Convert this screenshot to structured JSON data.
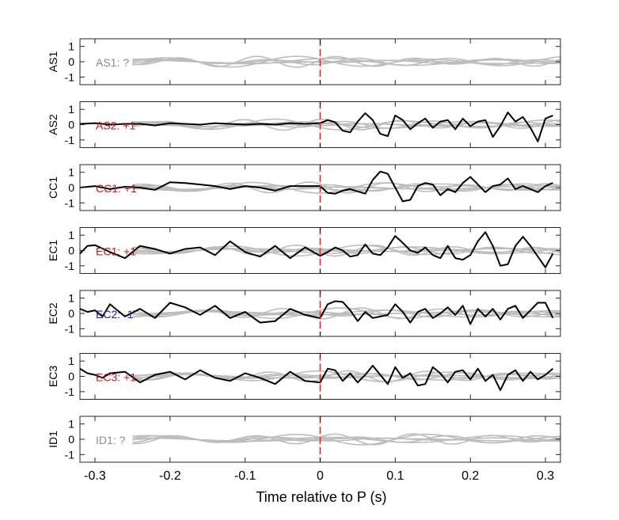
{
  "chart_data": {
    "type": "line",
    "xlabel": "Time relative to P (s)",
    "xlim": [
      -0.32,
      0.32
    ],
    "xticks": [
      -0.3,
      -0.2,
      -0.1,
      0,
      0.1,
      0.2,
      0.3
    ],
    "xtick_labels": [
      "-0.3",
      "-0.2",
      "-0.1",
      "0",
      "0.1",
      "0.2",
      "0.3"
    ],
    "ylim": [
      -1.5,
      1.5
    ],
    "yticks": [
      1,
      0,
      -1
    ],
    "ytick_labels": [
      "1",
      "0",
      "-1"
    ],
    "pick_marker_x": 0,
    "colors": {
      "axis": "#262626",
      "trace": "#000000",
      "background_traces": "#bdbdbd",
      "pick_marker": "#e8261f",
      "label_positive": "#c0151a",
      "label_negative": "#1b1bb0",
      "label_unknown": "#8c8c8c"
    },
    "panels": [
      {
        "ylabel": "AS1",
        "annotation": "AS1: ?",
        "annotation_color": "#8c8c8c",
        "trace": null
      },
      {
        "ylabel": "AS2",
        "annotation": "AS2: +1",
        "annotation_color": "#c0151a",
        "trace": {
          "x": [
            -0.32,
            -0.3,
            -0.28,
            -0.26,
            -0.24,
            -0.22,
            -0.2,
            -0.18,
            -0.16,
            -0.14,
            -0.12,
            -0.1,
            -0.08,
            -0.06,
            -0.04,
            -0.02,
            0,
            0.01,
            0.02,
            0.03,
            0.04,
            0.05,
            0.06,
            0.07,
            0.08,
            0.09,
            0.1,
            0.11,
            0.12,
            0.13,
            0.14,
            0.15,
            0.16,
            0.17,
            0.18,
            0.19,
            0.2,
            0.21,
            0.22,
            0.23,
            0.24,
            0.25,
            0.26,
            0.27,
            0.28,
            0.29,
            0.3,
            0.31
          ],
          "y": [
            0.05,
            0.1,
            0,
            0.05,
            0.05,
            -0.05,
            0.1,
            0.05,
            0,
            0.1,
            0.05,
            0,
            0.05,
            0,
            0.1,
            0.05,
            0.1,
            0.3,
            0.15,
            -0.4,
            -0.5,
            0.2,
            0.75,
            0.3,
            -0.6,
            -0.75,
            0.6,
            0.3,
            -0.3,
            0.1,
            0.4,
            -0.2,
            0.2,
            0.3,
            -0.3,
            0.4,
            -0.1,
            0.2,
            0.3,
            -0.8,
            -0.1,
            0.8,
            0.2,
            0.5,
            -0.2,
            -1.1,
            0.4,
            0.6
          ]
        }
      },
      {
        "ylabel": "CC1",
        "annotation": "CC1: +1",
        "annotation_color": "#c0151a",
        "trace": {
          "x": [
            -0.32,
            -0.3,
            -0.28,
            -0.26,
            -0.24,
            -0.22,
            -0.2,
            -0.18,
            -0.16,
            -0.14,
            -0.12,
            -0.1,
            -0.08,
            -0.06,
            -0.04,
            -0.02,
            0,
            0.01,
            0.02,
            0.03,
            0.04,
            0.05,
            0.06,
            0.07,
            0.08,
            0.09,
            0.1,
            0.11,
            0.12,
            0.13,
            0.14,
            0.15,
            0.16,
            0.17,
            0.18,
            0.19,
            0.2,
            0.21,
            0.22,
            0.23,
            0.24,
            0.25,
            0.26,
            0.27,
            0.28,
            0.29,
            0.3,
            0.31
          ],
          "y": [
            0,
            0.1,
            -0.1,
            0.05,
            0,
            -0.15,
            0.35,
            0.3,
            0.2,
            0.1,
            -0.1,
            0.1,
            0,
            -0.2,
            0.1,
            0.1,
            0.1,
            -0.35,
            -0.4,
            -0.2,
            -0.1,
            -0.25,
            -0.4,
            0.5,
            1.05,
            0.9,
            0,
            -0.9,
            -0.8,
            0.1,
            0.3,
            0.2,
            -0.5,
            -0.1,
            -0.3,
            0.3,
            0.7,
            0.2,
            -0.3,
            0.1,
            0.2,
            0.6,
            -0.1,
            0.1,
            -0.1,
            -0.3,
            0.1,
            0.3
          ]
        }
      },
      {
        "ylabel": "EC1",
        "annotation": "EC1: +1",
        "annotation_color": "#c0151a",
        "trace": {
          "x": [
            -0.32,
            -0.31,
            -0.3,
            -0.28,
            -0.26,
            -0.24,
            -0.22,
            -0.2,
            -0.18,
            -0.16,
            -0.14,
            -0.12,
            -0.1,
            -0.08,
            -0.06,
            -0.04,
            -0.02,
            0,
            0.01,
            0.02,
            0.03,
            0.04,
            0.05,
            0.06,
            0.07,
            0.08,
            0.09,
            0.1,
            0.11,
            0.12,
            0.13,
            0.14,
            0.15,
            0.16,
            0.17,
            0.18,
            0.19,
            0.2,
            0.21,
            0.22,
            0.23,
            0.24,
            0.25,
            0.26,
            0.27,
            0.28,
            0.29,
            0.3,
            0.31
          ],
          "y": [
            -0.2,
            0.3,
            0.35,
            -0.1,
            -0.5,
            0.3,
            0.1,
            -0.2,
            0.1,
            0.2,
            -0.3,
            0.6,
            -0.1,
            -0.4,
            0.3,
            -0.5,
            0.2,
            -0.35,
            -0.1,
            0.2,
            0,
            -0.4,
            -0.3,
            0.4,
            -0.2,
            -0.3,
            0.2,
            0.95,
            0.5,
            0,
            -0.15,
            0.2,
            -0.3,
            -0.5,
            0.3,
            -0.5,
            -0.6,
            -0.3,
            0.6,
            1.2,
            0.3,
            -1,
            -0.9,
            0.3,
            0.9,
            0.3,
            -0.4,
            -1.1,
            -0.2
          ]
        }
      },
      {
        "ylabel": "EC2",
        "annotation": "EC2: -1",
        "annotation_color": "#1b1bb0",
        "trace": {
          "x": [
            -0.32,
            -0.31,
            -0.3,
            -0.29,
            -0.28,
            -0.26,
            -0.24,
            -0.22,
            -0.2,
            -0.18,
            -0.16,
            -0.14,
            -0.12,
            -0.1,
            -0.08,
            -0.06,
            -0.04,
            -0.02,
            0,
            0.01,
            0.02,
            0.03,
            0.04,
            0.05,
            0.06,
            0.07,
            0.08,
            0.09,
            0.1,
            0.11,
            0.12,
            0.13,
            0.14,
            0.15,
            0.16,
            0.17,
            0.18,
            0.19,
            0.2,
            0.21,
            0.22,
            0.23,
            0.24,
            0.25,
            0.26,
            0.27,
            0.28,
            0.29,
            0.3,
            0.31
          ],
          "y": [
            0.3,
            0.1,
            0.2,
            -0.2,
            0.6,
            -0.2,
            0.3,
            -0.3,
            0.7,
            0.4,
            -0.1,
            0.5,
            -0.3,
            0.1,
            -0.6,
            -0.5,
            0.3,
            -0.1,
            -0.3,
            0.6,
            0.8,
            0.75,
            0.2,
            -0.5,
            0.1,
            -0.3,
            -0.2,
            -0.1,
            0.6,
            0.1,
            -0.6,
            0.1,
            0.3,
            -0.3,
            0,
            0.4,
            -0.1,
            0.5,
            -0.7,
            0.3,
            -0.2,
            0.3,
            -0.4,
            0.3,
            0.5,
            -0.3,
            0.2,
            0.7,
            0.7,
            -0.3
          ]
        }
      },
      {
        "ylabel": "EC3",
        "annotation": "EC3: +1",
        "annotation_color": "#c0151a",
        "trace": {
          "x": [
            -0.32,
            -0.31,
            -0.3,
            -0.29,
            -0.28,
            -0.26,
            -0.24,
            -0.22,
            -0.2,
            -0.18,
            -0.16,
            -0.14,
            -0.12,
            -0.1,
            -0.08,
            -0.06,
            -0.04,
            -0.02,
            0,
            0.01,
            0.02,
            0.03,
            0.04,
            0.05,
            0.06,
            0.07,
            0.08,
            0.09,
            0.1,
            0.11,
            0.12,
            0.13,
            0.14,
            0.15,
            0.16,
            0.17,
            0.18,
            0.19,
            0.2,
            0.21,
            0.22,
            0.23,
            0.24,
            0.25,
            0.26,
            0.27,
            0.28,
            0.29,
            0.3,
            0.31
          ],
          "y": [
            0.5,
            0.2,
            0.1,
            -0.1,
            0.2,
            0.3,
            -0.4,
            0.1,
            0.3,
            -0.2,
            0.4,
            -0.1,
            -0.3,
            0.2,
            -0.1,
            -0.5,
            0.3,
            -0.3,
            -0.4,
            0.5,
            0.4,
            -0.3,
            0.2,
            -0.4,
            0.1,
            0.7,
            0.1,
            -0.5,
            0.6,
            -0.1,
            0.2,
            -0.6,
            -0.5,
            0.6,
            0.2,
            -0.4,
            0.3,
            0.4,
            -0.2,
            0.5,
            -0.3,
            0.1,
            -0.9,
            0.1,
            0.4,
            -0.3,
            0.3,
            -0.2,
            0.1,
            0.5
          ]
        }
      },
      {
        "ylabel": "ID1",
        "annotation": "ID1: ?",
        "annotation_color": "#8c8c8c",
        "trace": null
      }
    ]
  }
}
